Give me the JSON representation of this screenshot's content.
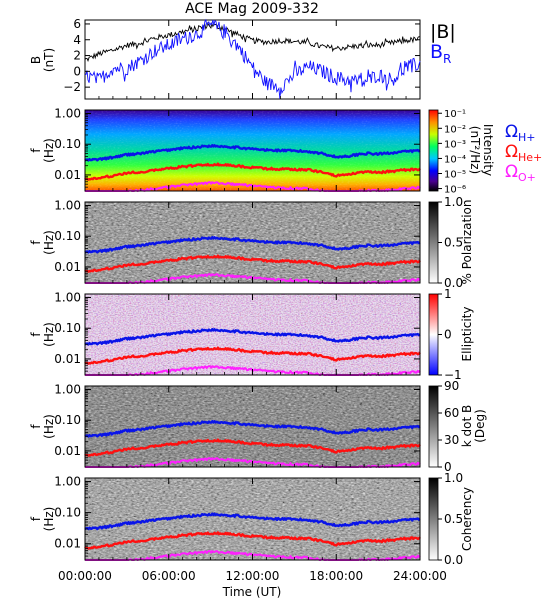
{
  "title": "ACE Mag 2009-332",
  "xlabel": "Time (UT)",
  "xticks": [
    "00:00:00",
    "06:00:00",
    "12:00:00",
    "18:00:00",
    "24:00:00"
  ],
  "freq_ticks": [
    "1.00",
    "0.10",
    "0.01"
  ],
  "freq_ylabel": [
    "f",
    "(Hz)"
  ],
  "legend": {
    "B": "|B|",
    "BR": "B",
    "BR_sub": "R",
    "omega": "Ω",
    "H_sub": "H+",
    "He_sub": "He+",
    "O_sub": "O+"
  },
  "colors": {
    "B": "#000000",
    "BR": "#1010ff",
    "H": "#0a14e8",
    "He": "#ff1010",
    "O": "#ff20ff"
  },
  "panels": [
    {
      "id": "mag",
      "type": "line",
      "ylabel": [
        "B",
        "(nT)"
      ],
      "yticks": [
        "6",
        "4",
        "2",
        "0",
        "−2"
      ]
    },
    {
      "id": "intensity",
      "type": "heatmap",
      "colormap": "rainbow",
      "cbar_label": [
        "Intensity",
        "(nT²/Hz)"
      ],
      "cbar_ticks": [
        "10⁻¹",
        "10⁻²",
        "10⁻³",
        "10⁻⁴",
        "10⁻⁵",
        "10⁻⁶"
      ]
    },
    {
      "id": "polarization",
      "type": "heatmap",
      "colormap": "gray",
      "cbar_label": [
        "% Polarization"
      ],
      "cbar_ticks": [
        "1.0",
        "0.5",
        "0.0"
      ]
    },
    {
      "id": "ellipticity",
      "type": "heatmap",
      "colormap": "bwr",
      "cbar_label": [
        "Ellipticity"
      ],
      "cbar_ticks": [
        "1",
        "0",
        "−1"
      ]
    },
    {
      "id": "kdotb",
      "type": "heatmap",
      "colormap": "gray",
      "cbar_label": [
        "k dot B",
        "(Deg)"
      ],
      "cbar_ticks": [
        "90",
        "60",
        "30",
        "0"
      ]
    },
    {
      "id": "coherency",
      "type": "heatmap",
      "colormap": "gray",
      "cbar_label": [
        "Coherency"
      ],
      "cbar_ticks": [
        "1.0",
        "0.5",
        "0.0"
      ]
    }
  ],
  "chart_data": {
    "type": "line",
    "title": "ACE Mag 2009-332",
    "xlabel": "Time (UT)",
    "xlim_hours": [
      0,
      24
    ],
    "mag": {
      "ylabel": "B (nT)",
      "ylim": [
        -3.5,
        6.5
      ],
      "x_hours": [
        0,
        1,
        2,
        3,
        4,
        5,
        6,
        7,
        8,
        9,
        10,
        11,
        12,
        13,
        14,
        15,
        16,
        17,
        18,
        19,
        20,
        21,
        22,
        23,
        24
      ],
      "series": [
        {
          "name": "|B|",
          "values": [
            1.4,
            2.2,
            2.7,
            3.3,
            3.6,
            4.2,
            4.6,
            5.0,
            5.4,
            5.9,
            5.4,
            4.6,
            3.9,
            3.7,
            3.9,
            3.8,
            3.6,
            3.1,
            2.9,
            3.1,
            3.3,
            3.3,
            3.6,
            3.9,
            4.1
          ]
        },
        {
          "name": "B_R",
          "values": [
            -0.5,
            -1.1,
            0.4,
            0.4,
            1.4,
            2.6,
            3.3,
            4.1,
            4.7,
            5.9,
            5.1,
            3.1,
            0.5,
            -1.5,
            -2.0,
            -0.4,
            0.6,
            0.0,
            -0.8,
            -1.1,
            -1.4,
            -0.4,
            -1.1,
            0.5,
            1.0
          ]
        }
      ]
    },
    "freq_axis": {
      "scale": "log",
      "ylim_hz": [
        0.003,
        1.3
      ]
    },
    "gyrofrequencies": {
      "x_hours": [
        0,
        1,
        2,
        3,
        4,
        5,
        6,
        7,
        8,
        9,
        10,
        11,
        12,
        13,
        14,
        15,
        16,
        17,
        18,
        19,
        20,
        21,
        22,
        23,
        24
      ],
      "series": [
        {
          "name": "Ω H+",
          "values": [
            0.03,
            0.032,
            0.037,
            0.046,
            0.05,
            0.058,
            0.065,
            0.074,
            0.081,
            0.089,
            0.085,
            0.078,
            0.07,
            0.064,
            0.063,
            0.06,
            0.058,
            0.05,
            0.038,
            0.042,
            0.05,
            0.048,
            0.053,
            0.058,
            0.062
          ]
        },
        {
          "name": "Ω He+",
          "values": [
            0.0075,
            0.008,
            0.0092,
            0.0115,
            0.0125,
            0.0145,
            0.0162,
            0.0185,
            0.0202,
            0.0222,
            0.0212,
            0.0195,
            0.0175,
            0.016,
            0.0158,
            0.015,
            0.0145,
            0.0125,
            0.0095,
            0.0105,
            0.0125,
            0.012,
            0.0132,
            0.0145,
            0.0155
          ]
        },
        {
          "name": "Ω O+",
          "values": [
            0.0019,
            0.002,
            0.0023,
            0.0029,
            0.0031,
            0.0036,
            0.0041,
            0.0046,
            0.0051,
            0.0056,
            0.0053,
            0.0049,
            0.0044,
            0.004,
            0.0039,
            0.0037,
            0.0036,
            0.0031,
            0.0024,
            0.0026,
            0.0031,
            0.003,
            0.0033,
            0.0036,
            0.0039
          ]
        }
      ]
    },
    "colorbars": {
      "intensity_range": [
        1e-06,
        0.1
      ],
      "polarization_range": [
        0,
        1
      ],
      "ellipticity_range": [
        -1,
        1
      ],
      "kdotb_range_deg": [
        0,
        90
      ],
      "coherency_range": [
        0,
        1
      ]
    }
  }
}
